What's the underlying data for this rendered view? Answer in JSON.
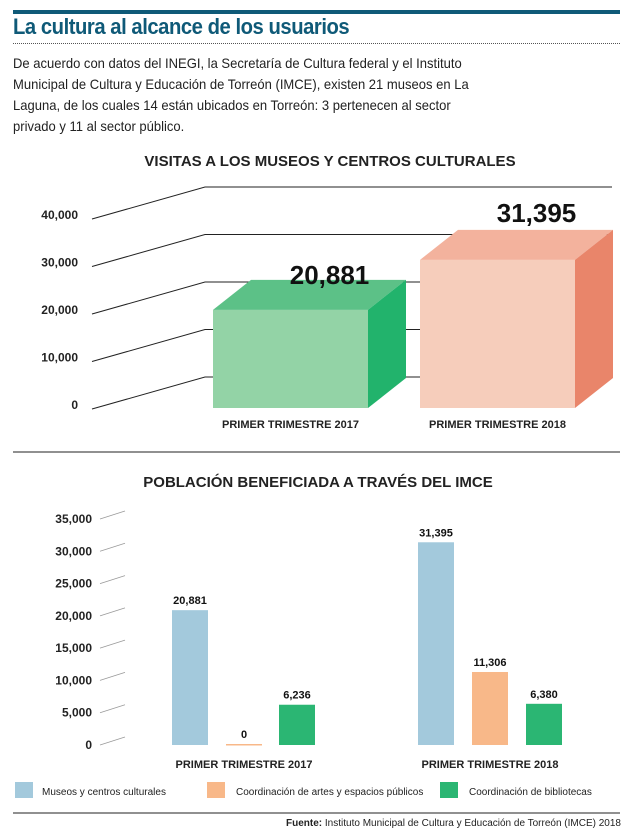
{
  "title": "La cultura al alcance de los usuarios",
  "intro": "De acuerdo con datos del INEGI, la Secretaría de Cultura federal y el Instituto Municipal de Cultura y Educación de Torreón (IMCE), existen 21 museos en La Laguna, de los cuales 14 están ubicados en Torreón: 3 pertenecen al sector privado y 11 al sector público.",
  "source_label": "Fuente:",
  "source_text": "Instituto Municipal de Cultura y Educación de Torreón (IMCE) 2018",
  "chart_data": [
    {
      "type": "bar",
      "title": "VISITAS A LOS MUSEOS Y CENTROS CULTURALES",
      "categories": [
        "PRIMER TRIMESTRE 2017",
        "PRIMER TRIMESTRE 2018"
      ],
      "values": [
        20881,
        31395
      ],
      "value_labels": [
        "20,881",
        "31,395"
      ],
      "yticks": [
        "0",
        "10,000",
        "20,000",
        "30,000",
        "40,000"
      ],
      "ylim": [
        0,
        40000
      ],
      "colors": [
        {
          "front": "#93d3a6",
          "top": "#5cc187",
          "side": "#22b36c"
        },
        {
          "front": "#f6cdbb",
          "top": "#f3b29d",
          "side": "#e9856a"
        }
      ]
    },
    {
      "type": "bar",
      "title": "POBLACIÓN BENEFICIADA A TRAVÉS DEL IMCE",
      "categories": [
        "PRIMER TRIMESTRE 2017",
        "PRIMER TRIMESTRE 2018"
      ],
      "series": [
        {
          "name": "Museos y centros culturales",
          "values": [
            20881,
            31395
          ],
          "labels": [
            "20,881",
            "31,395"
          ],
          "color": "#a3c9dc"
        },
        {
          "name": "Coordinación de artes y espacios públicos",
          "values": [
            0,
            11306
          ],
          "labels": [
            "0",
            "11,306"
          ],
          "color": "#f8b889"
        },
        {
          "name": "Coordinación de bibliotecas",
          "values": [
            6236,
            6380
          ],
          "labels": [
            "6,236",
            "6,380"
          ],
          "color": "#2bb673"
        }
      ],
      "yticks": [
        "0",
        "5,000",
        "10,000",
        "15,000",
        "20,000",
        "25,000",
        "30,000",
        "35,000"
      ],
      "ylim": [
        0,
        35000
      ]
    }
  ]
}
